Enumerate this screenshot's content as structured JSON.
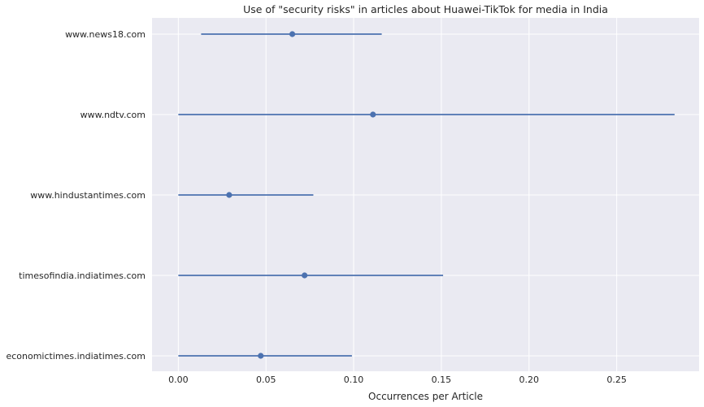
{
  "chart_data": {
    "type": "errorbar",
    "title": "Use of \"security risks\" in articles about Huawei-TikTok for media in India",
    "xlabel": "Occurrences per Article",
    "ylabel": "",
    "xlim": [
      -0.015,
      0.297
    ],
    "x_ticks": [
      "0.00",
      "0.05",
      "0.10",
      "0.15",
      "0.20",
      "0.25"
    ],
    "x_tick_values": [
      0,
      0.05,
      0.1,
      0.15,
      0.2,
      0.25
    ],
    "grid": true,
    "colors": {
      "point": "#4c72b0",
      "background": "#eaeaf2",
      "grid": "#ffffff"
    },
    "categories": [
      "www.news18.com",
      "www.ndtv.com",
      "www.hindustantimes.com",
      "timesofindia.indiatimes.com",
      "economictimes.indiatimes.com"
    ],
    "values": [
      0.065,
      0.111,
      0.029,
      0.072,
      0.047
    ],
    "lower": [
      0.013,
      0.0,
      0.0,
      0.0,
      0.0
    ],
    "upper": [
      0.116,
      0.283,
      0.077,
      0.151,
      0.099
    ]
  }
}
